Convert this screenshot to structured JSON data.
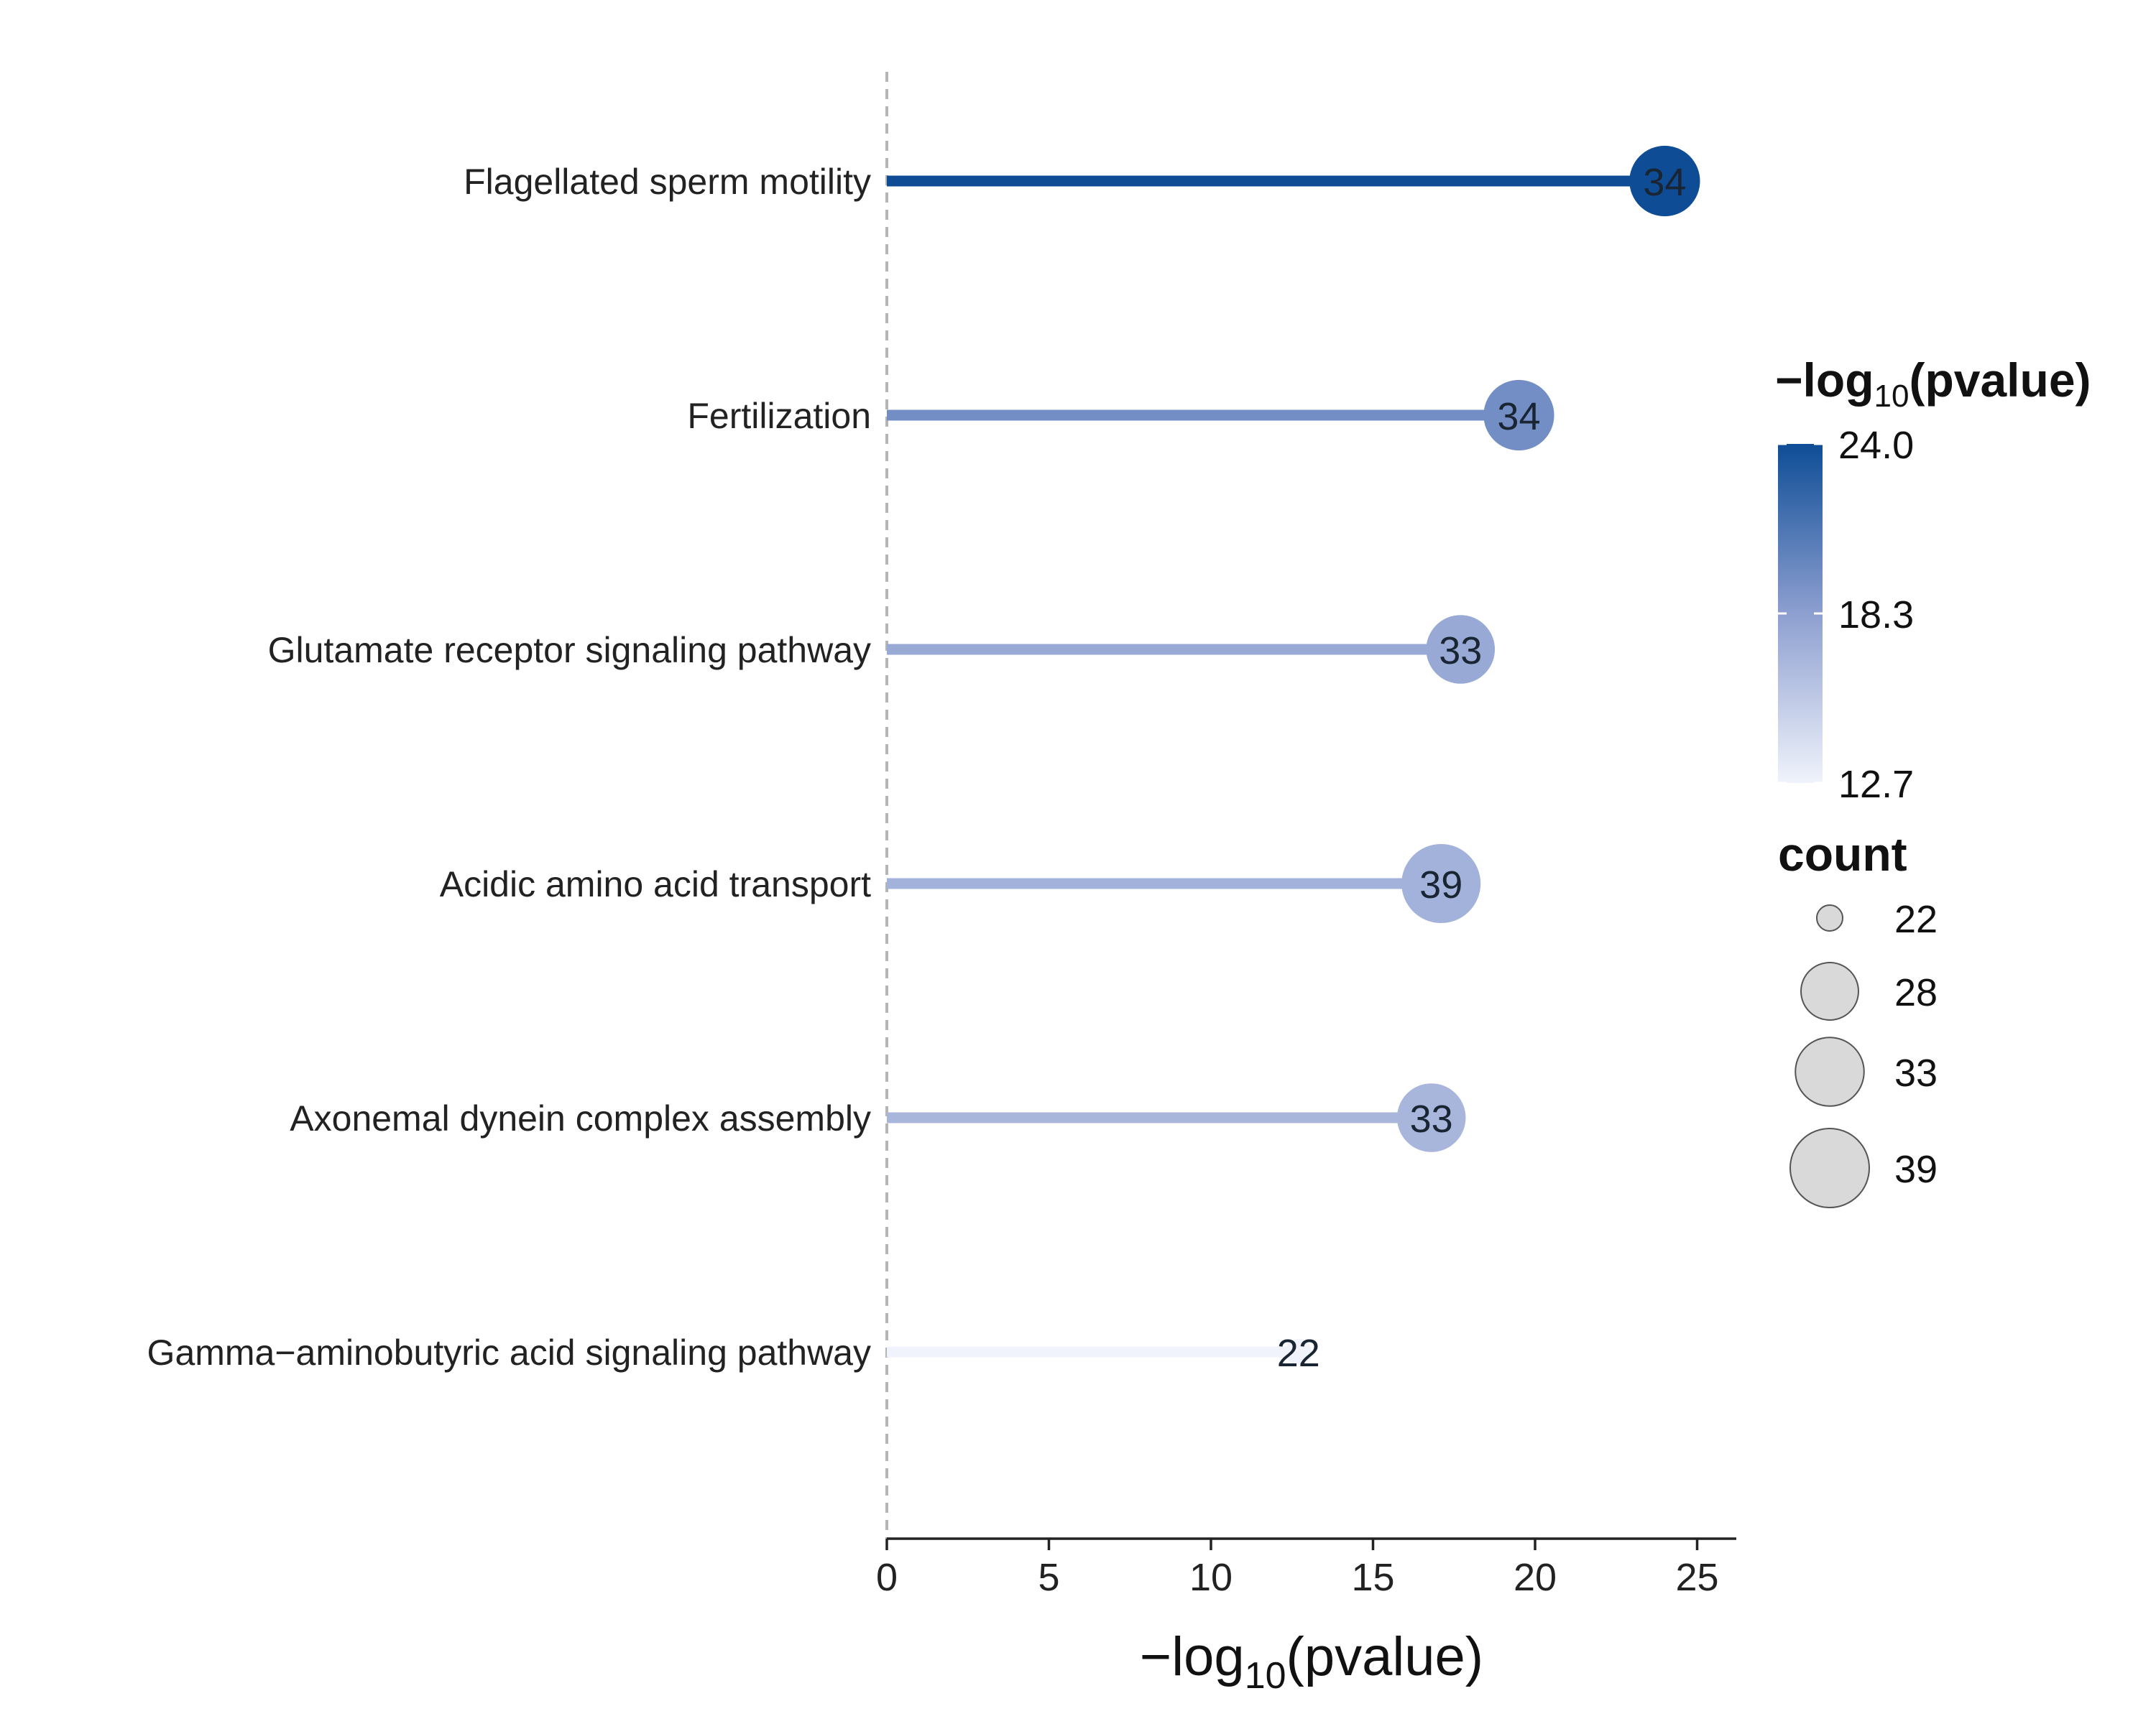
{
  "chart_data": {
    "type": "lollipop",
    "categories": [
      "Flagellated sperm motility",
      "Fertilization",
      "Glutamate receptor signaling pathway",
      "Acidic amino acid transport",
      "Axonemal dynein complex assembly",
      "Gamma−aminobutyric acid signaling pathway"
    ],
    "values": [
      24.0,
      19.5,
      17.7,
      17.1,
      16.8,
      12.7
    ],
    "counts": [
      34,
      34,
      33,
      39,
      33,
      22
    ],
    "xlabel": {
      "prefix": "−log",
      "sub": "10",
      "suffix": "(pvalue)"
    },
    "xlim": [
      0,
      26.2
    ],
    "xticks": [
      "0",
      "5",
      "10",
      "15",
      "20",
      "25"
    ],
    "reference_line": 0,
    "color_scale": {
      "low": "#f0f3fb",
      "mid": "#8d9fd0",
      "high": "#0e4d96",
      "min": 12.7,
      "max": 24.0
    },
    "legend": {
      "color_title": {
        "prefix": "−log",
        "sub": "10",
        "suffix": "(pvalue)"
      },
      "color_labels": [
        "24.0",
        "18.3",
        "12.7"
      ],
      "color_breaks": [
        24.0,
        18.35,
        12.7
      ],
      "size_title": "count",
      "size_labels": [
        "22",
        "28",
        "33",
        "39"
      ],
      "size_values": [
        22,
        28,
        33,
        39
      ],
      "placement": "right"
    }
  }
}
